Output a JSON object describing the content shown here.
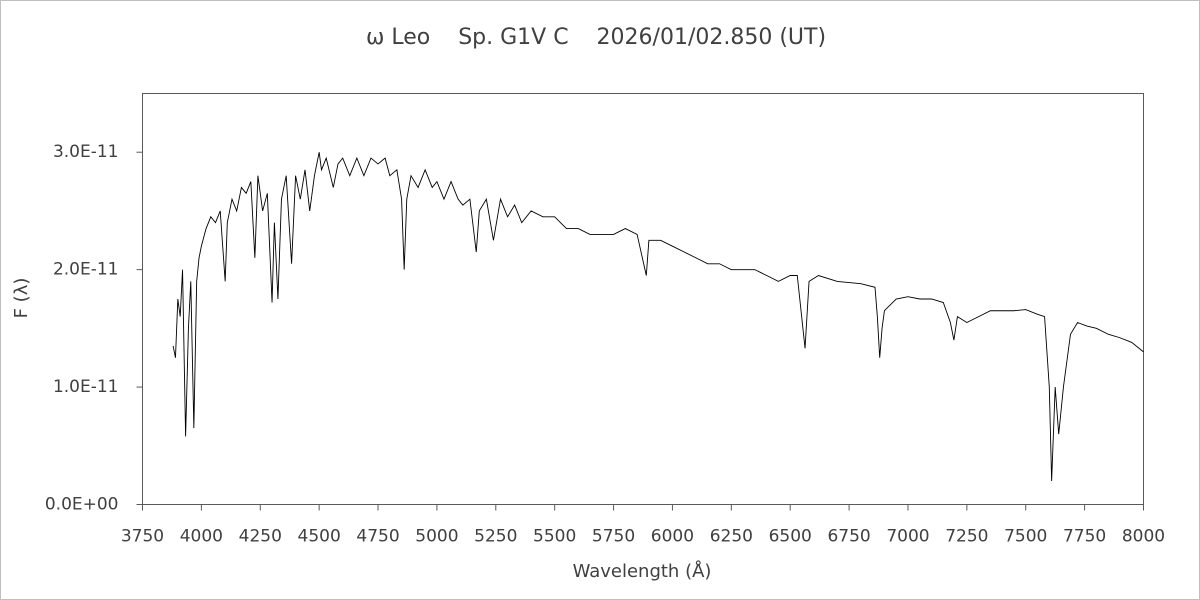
{
  "chart_data": {
    "type": "line",
    "title": "ω Leo    Sp. G1V C    2026/01/02.850 (UT)",
    "x_label": "Wavelength (Å)",
    "y_label": "F (λ)",
    "xlim": [
      3750,
      8000
    ],
    "xticks": [
      3750,
      4000,
      4250,
      4500,
      4750,
      5000,
      5250,
      5500,
      5750,
      6000,
      6250,
      6500,
      6750,
      7000,
      7250,
      7500,
      7750,
      8000
    ],
    "ylim": [
      0,
      3.5e-11
    ],
    "yticks": [
      {
        "value": 0,
        "label": "0.0E+00"
      },
      {
        "value": 1e-11,
        "label": "1.0E-11"
      },
      {
        "value": 2e-11,
        "label": "2.0E-11"
      },
      {
        "value": 3e-11,
        "label": "3.0E-11"
      }
    ],
    "grid": false,
    "color": "#000000",
    "x": [
      3880,
      3890,
      3900,
      3910,
      3920,
      3933,
      3945,
      3955,
      3968,
      3980,
      3990,
      4000,
      4020,
      4040,
      4060,
      4080,
      4101,
      4110,
      4130,
      4150,
      4170,
      4190,
      4210,
      4227,
      4240,
      4260,
      4280,
      4300,
      4310,
      4325,
      4340,
      4360,
      4383,
      4400,
      4420,
      4440,
      4460,
      4480,
      4500,
      4510,
      4530,
      4560,
      4580,
      4600,
      4630,
      4660,
      4690,
      4720,
      4750,
      4780,
      4800,
      4830,
      4850,
      4861,
      4872,
      4890,
      4920,
      4950,
      4980,
      5000,
      5030,
      5060,
      5090,
      5110,
      5140,
      5167,
      5180,
      5210,
      5240,
      5270,
      5300,
      5330,
      5360,
      5400,
      5450,
      5500,
      5550,
      5600,
      5650,
      5700,
      5750,
      5800,
      5850,
      5889,
      5900,
      5950,
      6000,
      6050,
      6100,
      6150,
      6200,
      6250,
      6300,
      6350,
      6400,
      6450,
      6500,
      6530,
      6563,
      6580,
      6620,
      6700,
      6800,
      6860,
      6870,
      6880,
      6890,
      6900,
      6950,
      7000,
      7050,
      7100,
      7150,
      7180,
      7195,
      7210,
      7250,
      7300,
      7350,
      7400,
      7450,
      7500,
      7550,
      7580,
      7600,
      7610,
      7625,
      7640,
      7660,
      7690,
      7720,
      7760,
      7800,
      7850,
      7900,
      7950,
      8000
    ],
    "values": [
      1.35e-11,
      1.25e-11,
      1.75e-11,
      1.6e-11,
      2e-11,
      5.8e-12,
      1.5e-11,
      1.9e-11,
      6.5e-12,
      1.9e-11,
      2.1e-11,
      2.2e-11,
      2.35e-11,
      2.45e-11,
      2.4e-11,
      2.5e-11,
      1.9e-11,
      2.4e-11,
      2.6e-11,
      2.5e-11,
      2.7e-11,
      2.65e-11,
      2.75e-11,
      2.1e-11,
      2.8e-11,
      2.5e-11,
      2.65e-11,
      1.72e-11,
      2.4e-11,
      1.75e-11,
      2.6e-11,
      2.8e-11,
      2.05e-11,
      2.8e-11,
      2.6e-11,
      2.85e-11,
      2.5e-11,
      2.8e-11,
      3e-11,
      2.85e-11,
      2.95e-11,
      2.7e-11,
      2.9e-11,
      2.95e-11,
      2.8e-11,
      2.95e-11,
      2.8e-11,
      2.95e-11,
      2.9e-11,
      2.95e-11,
      2.8e-11,
      2.85e-11,
      2.6e-11,
      2e-11,
      2.6e-11,
      2.8e-11,
      2.7e-11,
      2.85e-11,
      2.7e-11,
      2.75e-11,
      2.6e-11,
      2.75e-11,
      2.6e-11,
      2.55e-11,
      2.6e-11,
      2.15e-11,
      2.5e-11,
      2.6e-11,
      2.25e-11,
      2.6e-11,
      2.45e-11,
      2.55e-11,
      2.4e-11,
      2.5e-11,
      2.45e-11,
      2.45e-11,
      2.35e-11,
      2.35e-11,
      2.3e-11,
      2.3e-11,
      2.3e-11,
      2.35e-11,
      2.3e-11,
      1.95e-11,
      2.25e-11,
      2.25e-11,
      2.2e-11,
      2.15e-11,
      2.1e-11,
      2.05e-11,
      2.05e-11,
      2e-11,
      2e-11,
      2e-11,
      1.95e-11,
      1.9e-11,
      1.95e-11,
      1.95e-11,
      1.33e-11,
      1.9e-11,
      1.95e-11,
      1.9e-11,
      1.88e-11,
      1.85e-11,
      1.6e-11,
      1.25e-11,
      1.5e-11,
      1.65e-11,
      1.75e-11,
      1.77e-11,
      1.75e-11,
      1.75e-11,
      1.72e-11,
      1.55e-11,
      1.4e-11,
      1.6e-11,
      1.55e-11,
      1.6e-11,
      1.65e-11,
      1.65e-11,
      1.65e-11,
      1.66e-11,
      1.62e-11,
      1.6e-11,
      1e-11,
      2e-12,
      1e-11,
      6e-12,
      1e-11,
      1.45e-11,
      1.55e-11,
      1.52e-11,
      1.5e-11,
      1.45e-11,
      1.42e-11,
      1.38e-11,
      1.3e-11
    ]
  }
}
